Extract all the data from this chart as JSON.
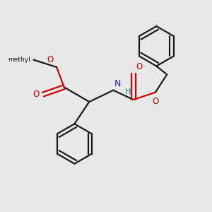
{
  "bg_color": "#e8e8e8",
  "bond_color": "#1a1a1a",
  "oxygen_color": "#cc0000",
  "nitrogen_color": "#1a1acc",
  "hydrogen_color": "#008080",
  "line_width": 1.6,
  "fig_size": [
    3.0,
    3.0
  ],
  "dpi": 100,
  "methyl_label": "methyl",
  "N_label": "N",
  "H_label": "H",
  "O_labels": [
    "O",
    "O",
    "O",
    "O"
  ]
}
